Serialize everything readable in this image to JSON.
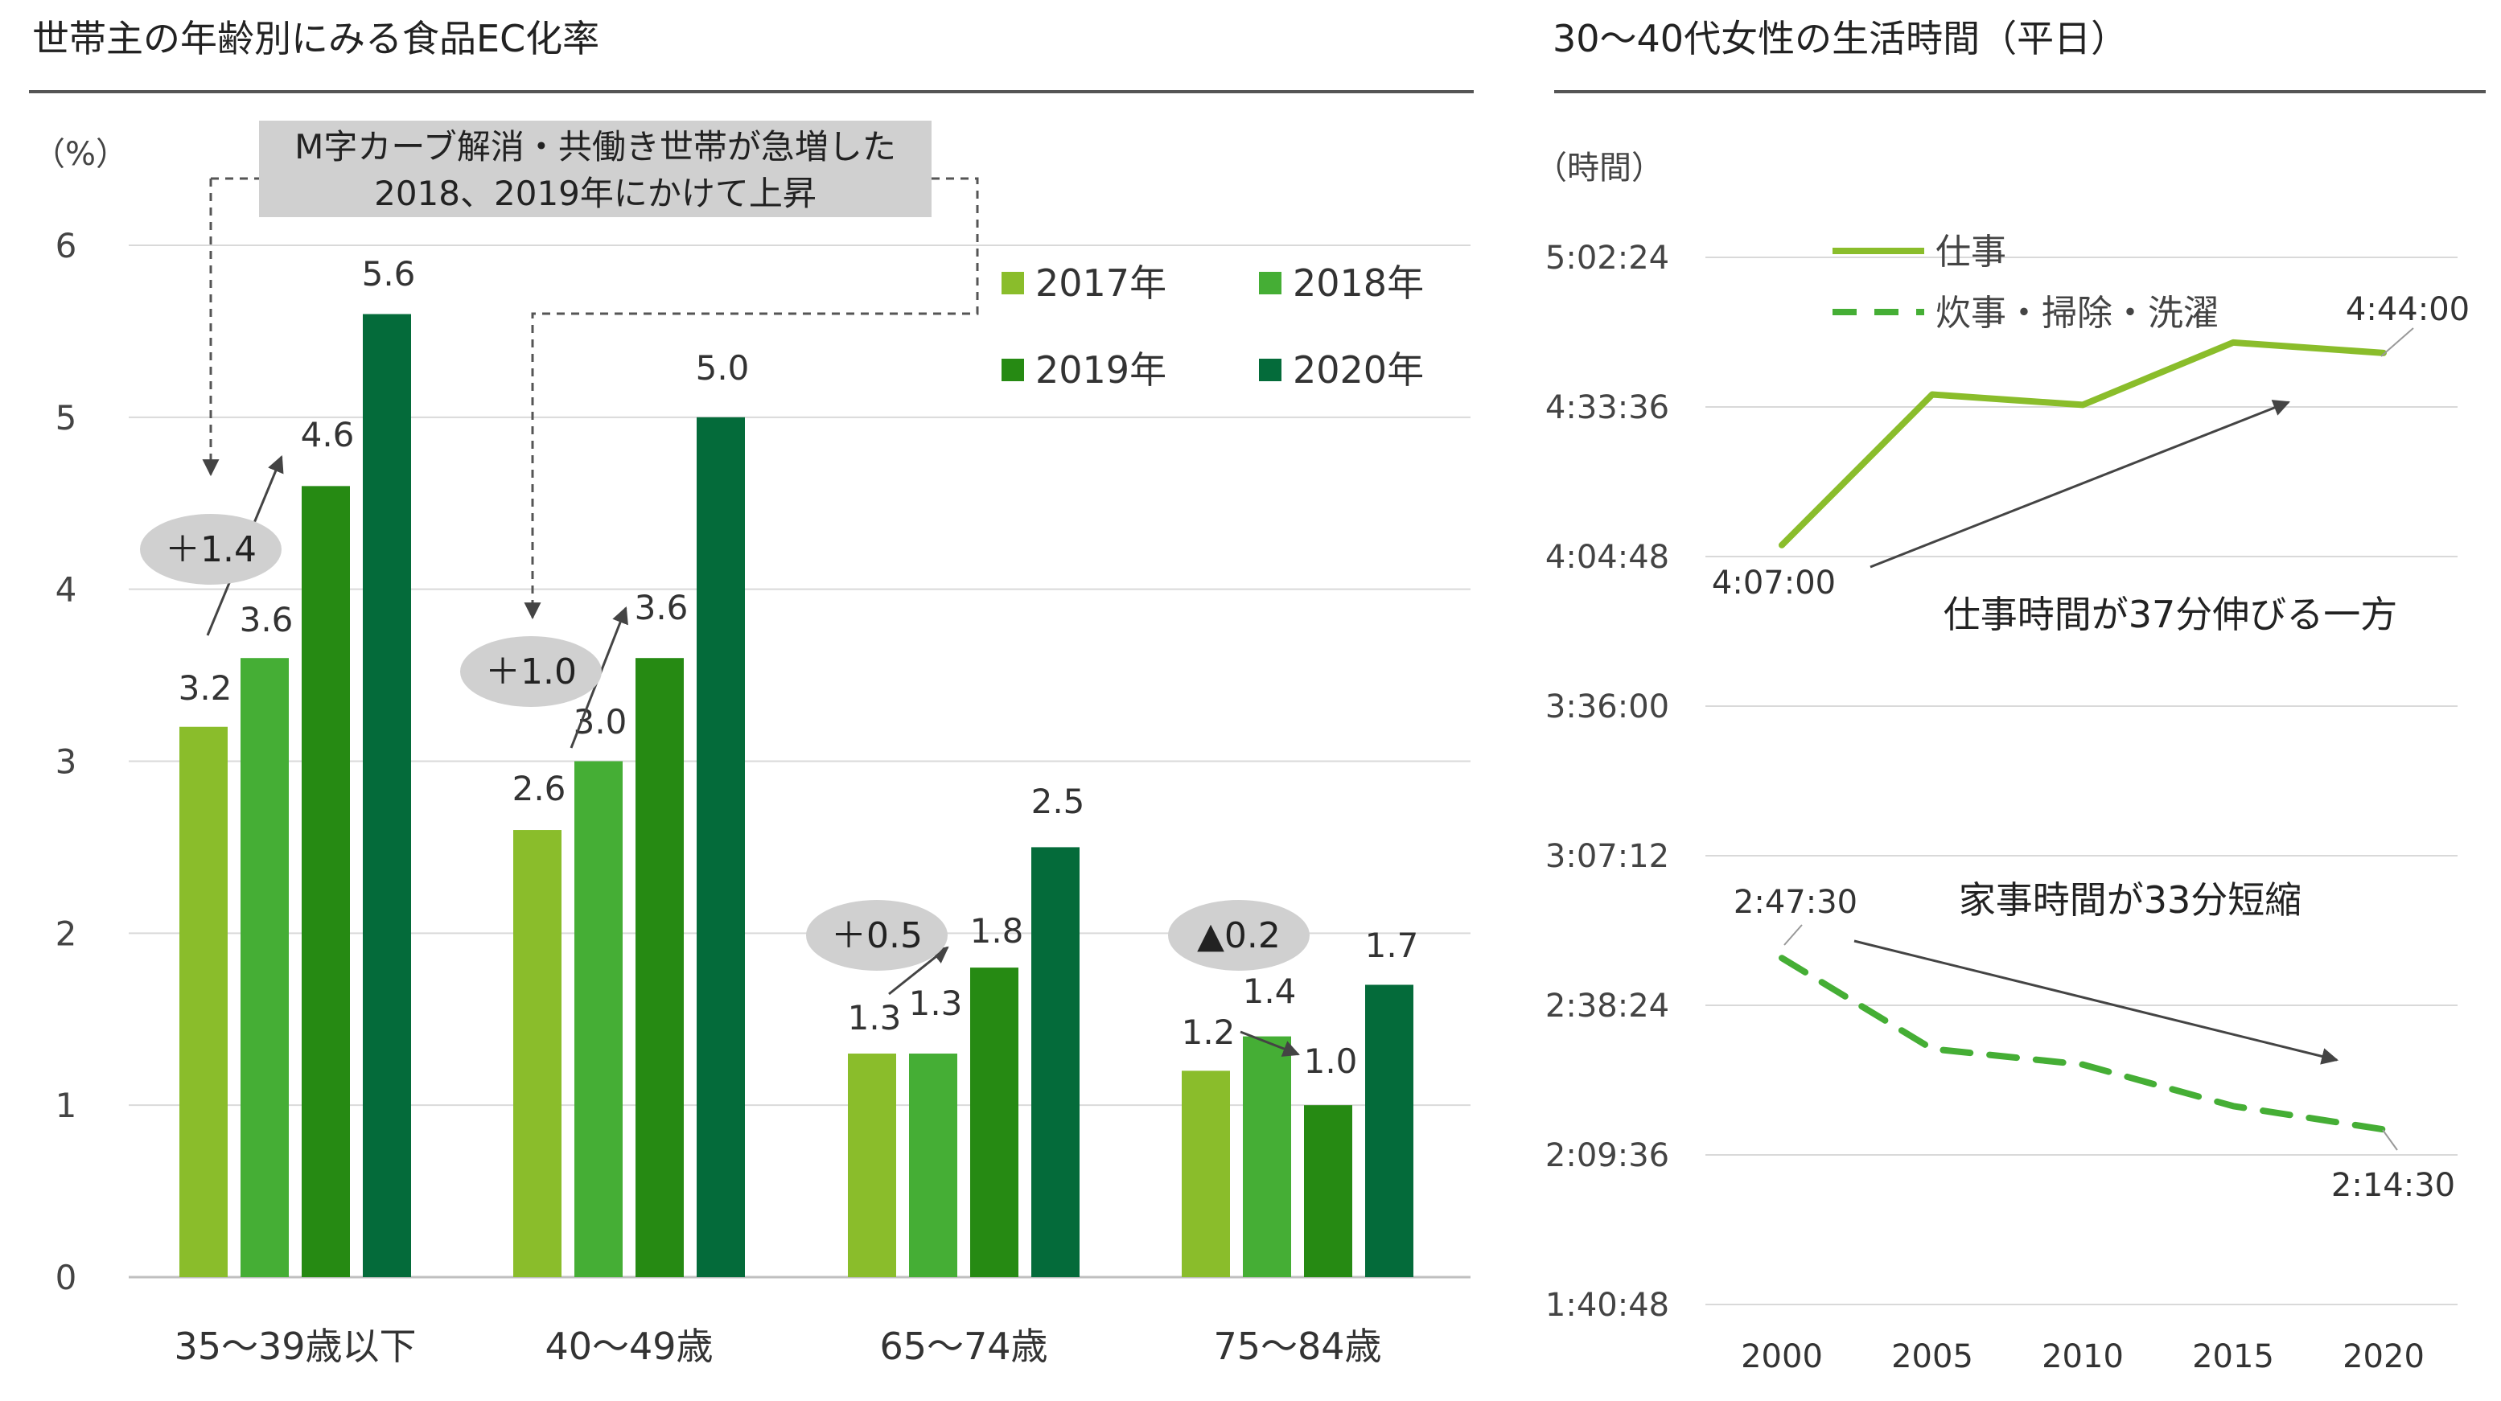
{
  "left_panel": {
    "title": "世帯主の年齢別にみる食品EC化率",
    "chart_data": {
      "type": "bar",
      "title": "世帯主の年齢別にみる食品EC化率",
      "ylabel": "（%）",
      "xlabel": "",
      "ylim": [
        0,
        6
      ],
      "yticks": [
        "0",
        "1",
        "2",
        "3",
        "4",
        "5",
        "6"
      ],
      "grid": true,
      "legend_position": "top-right",
      "categories": [
        "35〜39歳以下",
        "40〜49歳",
        "65〜74歳",
        "75〜84歳"
      ],
      "series": [
        {
          "name": "2017年",
          "color": "#8ABD2B",
          "values": [
            3.2,
            2.6,
            1.3,
            1.2
          ],
          "labels": [
            "3.2",
            "2.6",
            "1.3",
            "1.2"
          ]
        },
        {
          "name": "2018年",
          "color": "#45AE35",
          "values": [
            3.6,
            3.0,
            1.3,
            1.4
          ],
          "labels": [
            "3.6",
            "3.0",
            "1.3",
            "1.4"
          ]
        },
        {
          "name": "2019年",
          "color": "#268A13",
          "values": [
            4.6,
            3.6,
            1.8,
            1.0
          ],
          "labels": [
            "4.6",
            "3.6",
            "1.8",
            "1.0"
          ]
        },
        {
          "name": "2020年",
          "color": "#046B3A",
          "values": [
            5.6,
            5.0,
            2.5,
            1.7
          ],
          "labels": [
            "5.6",
            "5.0",
            "2.5",
            "1.7"
          ]
        }
      ],
      "annotations": {
        "callout_line1": "M字カーブ解消・共働き世帯が急増した",
        "callout_line2": "2018、2019年にかけて上昇",
        "badges": [
          "＋1.4",
          "＋1.0",
          "＋0.5",
          "▲0.2"
        ]
      }
    }
  },
  "right_panel": {
    "title": "30〜40代女性の生活時間（平日）",
    "chart_data": {
      "type": "line",
      "title": "30〜40代女性の生活時間（平日）",
      "ylabel": "（時間）",
      "xlabel": "",
      "x": [
        "2000",
        "2005",
        "2010",
        "2015",
        "2020"
      ],
      "ylim_minutes": [
        100.8,
        302.4
      ],
      "yticks": [
        "1:40:48",
        "2:09:36",
        "2:38:24",
        "3:07:12",
        "3:36:00",
        "4:04:48",
        "4:33:36",
        "5:02:24"
      ],
      "grid": true,
      "legend_position": "top-left",
      "series": [
        {
          "name": "仕事",
          "style": "solid",
          "color": "#8ABD2B",
          "values_minutes": [
            247,
            276,
            274,
            286,
            284
          ]
        },
        {
          "name": "炊事・掃除・洗濯",
          "style": "dashed",
          "color": "#45AE35",
          "values_minutes": [
            167.5,
            150,
            147,
            139,
            134.5
          ]
        }
      ],
      "annotations": {
        "work_start": "4:07:00",
        "work_end": "4:44:00",
        "house_start": "2:47:30",
        "house_end": "2:14:30",
        "work_note": "仕事時間が37分伸びる一方",
        "house_note": "家事時間が33分短縮"
      }
    }
  }
}
